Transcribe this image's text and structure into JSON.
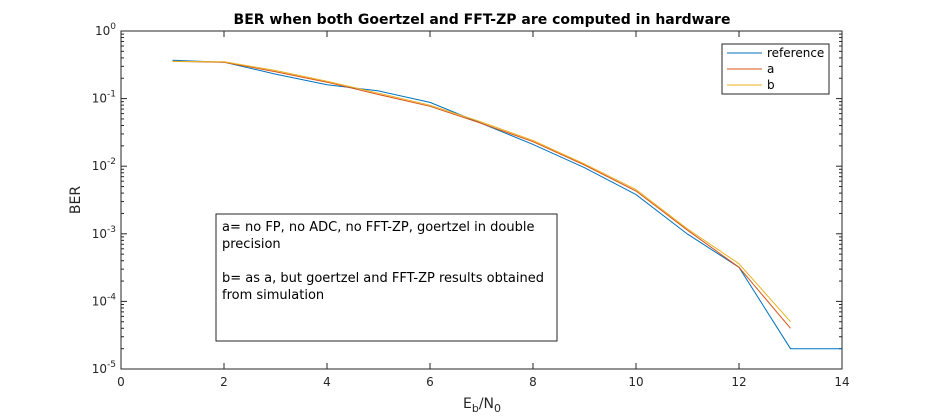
{
  "chart_data": {
    "type": "line",
    "title": "BER when both Goertzel and FFT-ZP are computed in hardware",
    "xlabel": "E_b/N_0",
    "xlabel_parts": {
      "main1": "E",
      "sub1": "b",
      "sep": "/N",
      "sub2": "0"
    },
    "ylabel": "BER",
    "xlim": [
      0,
      14
    ],
    "ylim": [
      1e-05,
      1
    ],
    "yscale": "log",
    "grid": false,
    "legend_position": "top-right",
    "x_ticks": [
      "0",
      "2",
      "4",
      "6",
      "8",
      "10",
      "12",
      "14"
    ],
    "x_tick_values": [
      0,
      2,
      4,
      6,
      8,
      10,
      12,
      14
    ],
    "y_ticks": [
      {
        "base": "10",
        "exp": "0",
        "value": 1
      },
      {
        "base": "10",
        "exp": "-1",
        "value": 0.1
      },
      {
        "base": "10",
        "exp": "-2",
        "value": 0.01
      },
      {
        "base": "10",
        "exp": "-3",
        "value": 0.001
      },
      {
        "base": "10",
        "exp": "-4",
        "value": 0.0001
      },
      {
        "base": "10",
        "exp": "-5",
        "value": 1e-05
      }
    ],
    "series": [
      {
        "name": "reference",
        "color": "#0072BD",
        "x": [
          1,
          2,
          3,
          4,
          5,
          6,
          7,
          8,
          9,
          10,
          11,
          12,
          13,
          14
        ],
        "y": [
          0.37,
          0.345,
          0.23,
          0.16,
          0.13,
          0.088,
          0.043,
          0.021,
          0.0095,
          0.0038,
          0.00099,
          0.00032,
          2e-05,
          2e-05
        ]
      },
      {
        "name": "a",
        "color": "#D95319",
        "x": [
          1,
          2,
          3,
          4,
          5,
          6,
          7,
          8,
          9,
          10,
          11,
          12,
          13
        ],
        "y": [
          0.355,
          0.345,
          0.25,
          0.175,
          0.115,
          0.077,
          0.043,
          0.023,
          0.0104,
          0.0043,
          0.00113,
          0.00032,
          4e-05
        ]
      },
      {
        "name": "b",
        "color": "#EDB120",
        "x": [
          1,
          2,
          3,
          4,
          5,
          6,
          7,
          8,
          9,
          10,
          11,
          12,
          13
        ],
        "y": [
          0.355,
          0.35,
          0.26,
          0.18,
          0.12,
          0.08,
          0.045,
          0.024,
          0.0108,
          0.0045,
          0.00118,
          0.00036,
          5e-05
        ]
      }
    ],
    "annotation": {
      "lines": [
        "a= no FP, no ADC, no FFT-ZP, goertzel in double",
        "precision",
        "",
        "b= as a, but goertzel and FFT-ZP results obtained",
        "from simulation"
      ]
    }
  }
}
